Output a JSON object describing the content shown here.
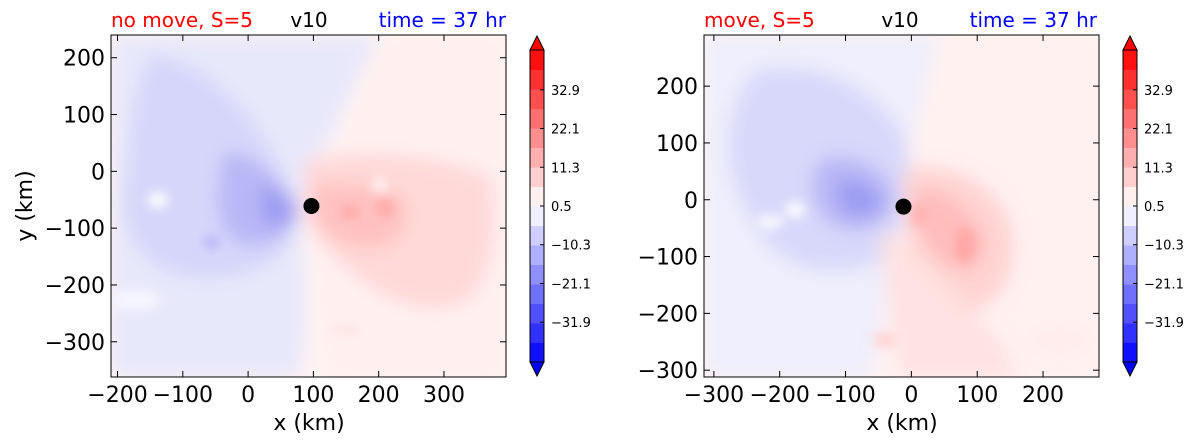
{
  "chart_data": [
    {
      "type": "heatmap",
      "title_left": "no move, S=5",
      "title_center": "v10",
      "title_right": "time = 37 hr",
      "xlabel": "x (km)",
      "ylabel": "y (km)",
      "xlim": [
        -210,
        395
      ],
      "ylim": [
        -362,
        240
      ],
      "xticks": [
        -200,
        -100,
        0,
        100,
        200,
        300
      ],
      "yticks": [
        -300,
        -200,
        -100,
        0,
        100,
        200
      ],
      "xtick_labels": [
        "−200",
        "−100",
        "0",
        "100",
        "200",
        "300"
      ],
      "ytick_labels": [
        "−300",
        "−200",
        "−100",
        "0",
        "100",
        "200"
      ],
      "storm_center": [
        97,
        -61
      ],
      "colorbar": {
        "range": [
          -43,
          44
        ],
        "ticks": [
          -31.9,
          -21.1,
          -10.3,
          0.5,
          11.3,
          22.1,
          32.9
        ],
        "tick_labels": [
          "−31.9",
          "−21.1",
          "−10.3",
          "0.5",
          "11.3",
          "22.1",
          "32.9"
        ],
        "extend": "both",
        "colormap": "bwr"
      }
    },
    {
      "type": "heatmap",
      "title_left": "move, S=5",
      "title_center": "v10",
      "title_right": "time = 37 hr",
      "xlabel": "x (km)",
      "ylabel": "",
      "xlim": [
        -315,
        285
      ],
      "ylim": [
        -312,
        290
      ],
      "xticks": [
        -300,
        -200,
        -100,
        0,
        100,
        200
      ],
      "yticks": [
        -300,
        -200,
        -100,
        0,
        100,
        200
      ],
      "xtick_labels": [
        "−300",
        "−200",
        "−100",
        "0",
        "100",
        "200"
      ],
      "ytick_labels": [
        "−300",
        "−200",
        "−100",
        "0",
        "100",
        "200"
      ],
      "storm_center": [
        -12,
        -12
      ],
      "colorbar": {
        "range": [
          -43,
          44
        ],
        "ticks": [
          -31.9,
          -21.1,
          -10.3,
          0.5,
          11.3,
          22.1,
          32.9
        ],
        "tick_labels": [
          "−31.9",
          "−21.1",
          "−10.3",
          "0.5",
          "11.3",
          "22.1",
          "32.9"
        ],
        "extend": "both",
        "colormap": "bwr"
      }
    }
  ],
  "colors": {
    "title_left": "#ff0000",
    "title_center": "#000000",
    "title_right": "#0000ff"
  }
}
